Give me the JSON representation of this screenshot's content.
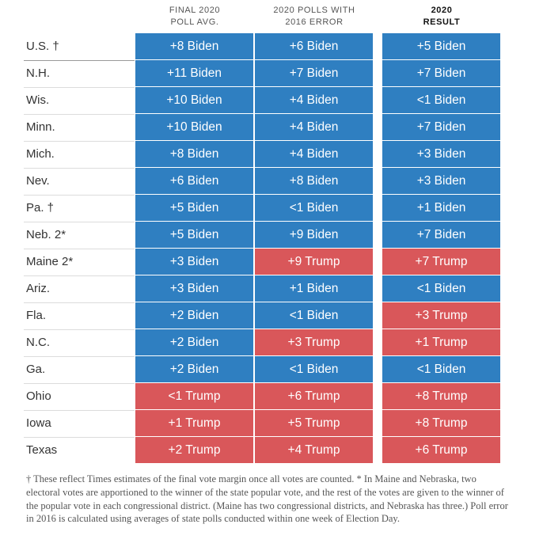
{
  "colors": {
    "biden": "#2f7fc1",
    "trump": "#d9575a"
  },
  "headers": {
    "col1": [
      "FINAL 2020",
      "POLL AVG."
    ],
    "col2": [
      "2020 POLLS WITH",
      "2016 ERROR"
    ],
    "col3": [
      "2020",
      "RESULT"
    ]
  },
  "chart_data": {
    "type": "table",
    "columns": [
      "FINAL 2020 POLL AVG.",
      "2020 POLLS WITH 2016 ERROR",
      "2020 RESULT"
    ],
    "rows": [
      {
        "state": "U.S. †",
        "poll_avg": "+8 Biden",
        "with_2016_error": "+6 Biden",
        "result": "+5 Biden"
      },
      {
        "state": "N.H.",
        "poll_avg": "+11 Biden",
        "with_2016_error": "+7 Biden",
        "result": "+7 Biden"
      },
      {
        "state": "Wis.",
        "poll_avg": "+10 Biden",
        "with_2016_error": "+4 Biden",
        "result": "<1 Biden"
      },
      {
        "state": "Minn.",
        "poll_avg": "+10 Biden",
        "with_2016_error": "+4 Biden",
        "result": "+7 Biden"
      },
      {
        "state": "Mich.",
        "poll_avg": "+8 Biden",
        "with_2016_error": "+4 Biden",
        "result": "+3 Biden"
      },
      {
        "state": "Nev.",
        "poll_avg": "+6 Biden",
        "with_2016_error": "+8 Biden",
        "result": "+3 Biden"
      },
      {
        "state": "Pa. †",
        "poll_avg": "+5 Biden",
        "with_2016_error": "<1 Biden",
        "result": "+1 Biden"
      },
      {
        "state": "Neb. 2*",
        "poll_avg": "+5 Biden",
        "with_2016_error": "+9 Biden",
        "result": "+7 Biden"
      },
      {
        "state": "Maine 2*",
        "poll_avg": "+3 Biden",
        "with_2016_error": "+9 Trump",
        "result": "+7 Trump"
      },
      {
        "state": "Ariz.",
        "poll_avg": "+3 Biden",
        "with_2016_error": "+1 Biden",
        "result": "<1 Biden"
      },
      {
        "state": "Fla.",
        "poll_avg": "+2 Biden",
        "with_2016_error": "<1 Biden",
        "result": "+3 Trump"
      },
      {
        "state": "N.C.",
        "poll_avg": "+2 Biden",
        "with_2016_error": "+3 Trump",
        "result": "+1 Trump"
      },
      {
        "state": "Ga.",
        "poll_avg": "+2 Biden",
        "with_2016_error": "<1 Biden",
        "result": "<1 Biden"
      },
      {
        "state": "Ohio",
        "poll_avg": "<1 Trump",
        "with_2016_error": "+6 Trump",
        "result": "+8 Trump"
      },
      {
        "state": "Iowa",
        "poll_avg": "+1 Trump",
        "with_2016_error": "+5 Trump",
        "result": "+8 Trump"
      },
      {
        "state": "Texas",
        "poll_avg": "+2 Trump",
        "with_2016_error": "+4 Trump",
        "result": "+6 Trump"
      }
    ]
  },
  "footnote": "† These reflect Times estimates of the final vote margin once all votes are counted. * In Maine and Nebraska, two electoral votes are apportioned to the winner of the state popular vote, and the rest of the votes are given to the winner of the popular vote in each congressional district. (Maine has two congressional districts, and Nebraska has three.) Poll error in 2016 is calculated using averages of state polls conducted within one week of Election Day."
}
